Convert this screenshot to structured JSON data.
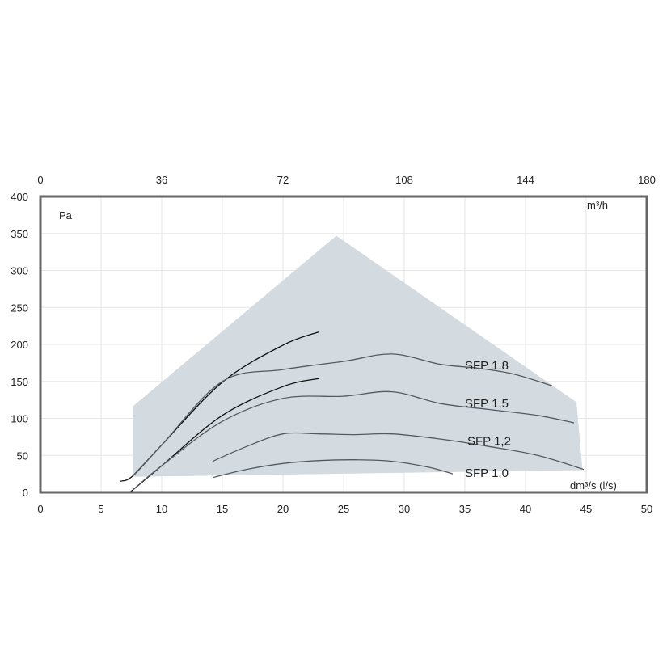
{
  "chart_data": {
    "type": "line",
    "x_unit_label": "dm³/s (l/s)",
    "x2_unit_label": "m³/h",
    "y_unit_label": "Pa",
    "xlim": [
      0,
      50
    ],
    "ylim": [
      0,
      400
    ],
    "x_ticks": [
      "0",
      "5",
      "10",
      "15",
      "20",
      "25",
      "30",
      "35",
      "40",
      "45",
      "50"
    ],
    "x2_ticks": [
      "0",
      "36",
      "72",
      "108",
      "144",
      "180"
    ],
    "y_ticks": [
      "0",
      "50",
      "100",
      "150",
      "200",
      "250",
      "300",
      "350",
      "400"
    ],
    "grid": true,
    "colors": {
      "area": "#d3dbe1",
      "curve": "#555a60",
      "system": "#111111",
      "frame": "#666666"
    },
    "operating_area": [
      [
        7.6,
        116
      ],
      [
        24.4,
        347
      ],
      [
        44.2,
        122
      ],
      [
        44.7,
        30
      ],
      [
        7.6,
        21
      ]
    ],
    "system_curves": [
      {
        "x": [
          6.6,
          7.6,
          10,
          15,
          20,
          23
        ],
        "y": [
          15,
          22,
          64,
          149,
          199,
          217
        ]
      },
      {
        "x": [
          7.2,
          7.6,
          10,
          15,
          20,
          23
        ],
        "y": [
          0,
          3,
          36,
          104,
          143,
          154
        ]
      }
    ],
    "series": [
      {
        "name": "SFP 1,8",
        "label_x": 35,
        "label_y": 166,
        "x": [
          7.6,
          10,
          15,
          20,
          25,
          29,
          33,
          36,
          39,
          42.2
        ],
        "y": [
          22,
          64,
          150,
          166,
          177,
          187,
          173,
          168,
          160,
          144
        ]
      },
      {
        "name": "SFP 1,5",
        "label_x": 35,
        "label_y": 115,
        "x": [
          7.6,
          10,
          15,
          20,
          25,
          29,
          33,
          37,
          41,
          44
        ],
        "y": [
          3,
          36,
          96,
          127,
          130,
          136,
          120,
          112,
          104,
          94
        ]
      },
      {
        "name": "SFP 1,2",
        "label_x": 35.2,
        "label_y": 64,
        "x": [
          14.2,
          17,
          20,
          23,
          26,
          29,
          33,
          37,
          41,
          44.8
        ],
        "y": [
          42,
          62,
          79,
          79,
          78,
          79,
          72,
          62,
          50,
          31
        ]
      },
      {
        "name": "SFP 1,0",
        "label_x": 35,
        "label_y": 21,
        "x": [
          14.2,
          17,
          20,
          23,
          26,
          29,
          32,
          34
        ],
        "y": [
          20,
          31,
          39,
          43,
          44,
          42,
          34,
          25
        ]
      }
    ]
  }
}
